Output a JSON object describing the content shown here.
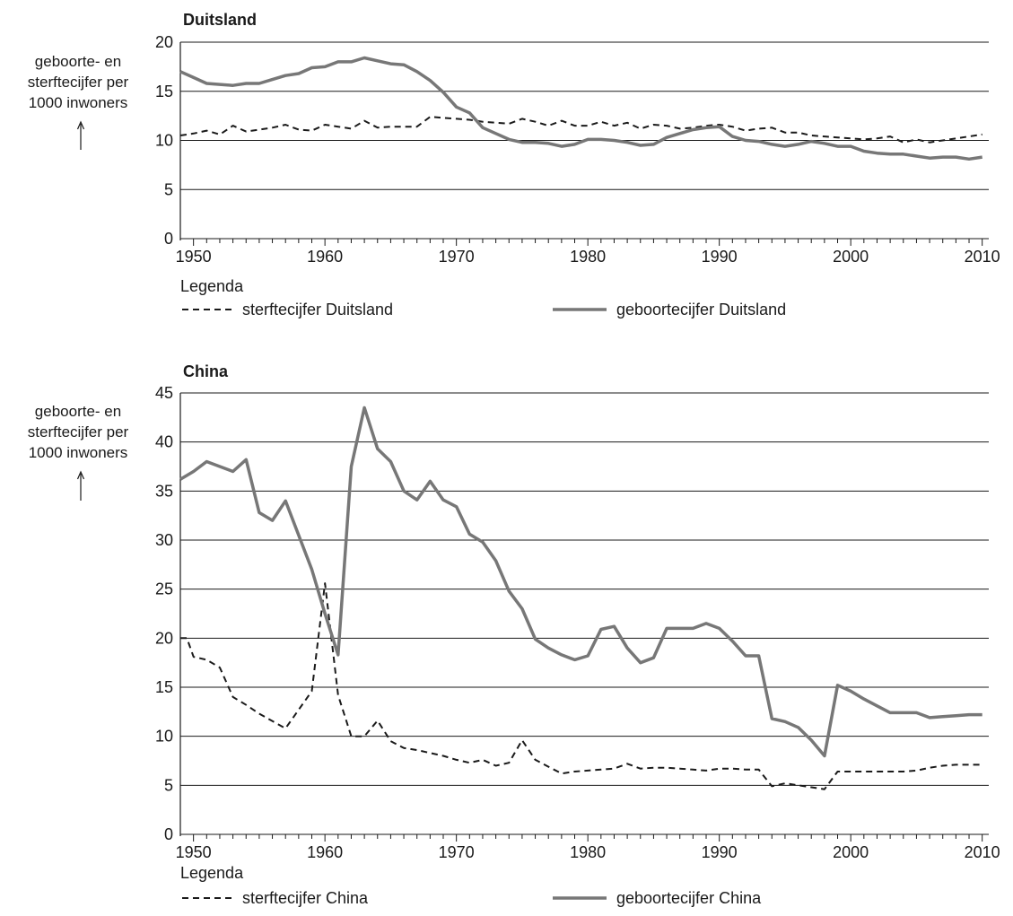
{
  "charts": [
    {
      "title": "Duitsland",
      "ylabel_lines": [
        "geboorte- en",
        "sterftecijfer per",
        "1000 inwoners"
      ],
      "legend_title": "Legenda",
      "chart_data": {
        "type": "line",
        "title": "Duitsland",
        "xlabel": "",
        "ylabel": "geboorte- en sterftecijfer per 1000 inwoners",
        "xlim": [
          1949,
          2010.5
        ],
        "ylim": [
          0,
          20
        ],
        "xticks": [
          1950,
          1960,
          1970,
          1980,
          1990,
          2000,
          2010
        ],
        "yticks": [
          0,
          5,
          10,
          15,
          20
        ],
        "grid": "horizontal",
        "legend_position": "bottom",
        "series": [
          {
            "name": "sterftecijfer Duitsland",
            "style": "dashed",
            "color": "#1a1a1a",
            "x": [
              1949,
              1950,
              1951,
              1952,
              1953,
              1954,
              1955,
              1956,
              1957,
              1958,
              1959,
              1960,
              1961,
              1962,
              1963,
              1964,
              1965,
              1966,
              1967,
              1968,
              1969,
              1970,
              1971,
              1972,
              1973,
              1974,
              1975,
              1976,
              1977,
              1978,
              1979,
              1980,
              1981,
              1982,
              1983,
              1984,
              1985,
              1986,
              1987,
              1988,
              1989,
              1990,
              1991,
              1992,
              1993,
              1994,
              1995,
              1996,
              1997,
              1998,
              1999,
              2000,
              2001,
              2002,
              2003,
              2004,
              2005,
              2006,
              2007,
              2008,
              2009,
              2010
            ],
            "y": [
              10.5,
              10.7,
              11.0,
              10.6,
              11.5,
              10.9,
              11.1,
              11.3,
              11.6,
              11.1,
              11.0,
              11.6,
              11.4,
              11.2,
              12.0,
              11.3,
              11.4,
              11.4,
              11.4,
              12.4,
              12.3,
              12.2,
              12.1,
              11.9,
              11.8,
              11.7,
              12.2,
              11.9,
              11.5,
              12.0,
              11.5,
              11.5,
              11.9,
              11.5,
              11.8,
              11.2,
              11.6,
              11.5,
              11.2,
              11.3,
              11.5,
              11.6,
              11.4,
              11.0,
              11.2,
              11.3,
              10.8,
              10.8,
              10.5,
              10.4,
              10.3,
              10.2,
              10.1,
              10.2,
              10.4,
              9.8,
              10.1,
              9.8,
              10.0,
              10.2,
              10.4,
              10.6
            ]
          },
          {
            "name": "geboortecijfer Duitsland",
            "style": "solid",
            "color": "#777777",
            "x": [
              1949,
              1950,
              1951,
              1952,
              1953,
              1954,
              1955,
              1956,
              1957,
              1958,
              1959,
              1960,
              1961,
              1962,
              1963,
              1964,
              1965,
              1966,
              1967,
              1968,
              1969,
              1970,
              1971,
              1972,
              1973,
              1974,
              1975,
              1976,
              1977,
              1978,
              1979,
              1980,
              1981,
              1982,
              1983,
              1984,
              1985,
              1986,
              1987,
              1988,
              1989,
              1990,
              1991,
              1992,
              1993,
              1994,
              1995,
              1996,
              1997,
              1998,
              1999,
              2000,
              2001,
              2002,
              2003,
              2004,
              2005,
              2006,
              2007,
              2008,
              2009,
              2010
            ],
            "y": [
              17.0,
              16.4,
              15.8,
              15.7,
              15.6,
              15.8,
              15.8,
              16.2,
              16.6,
              16.8,
              17.4,
              17.5,
              18.0,
              18.0,
              18.4,
              18.1,
              17.8,
              17.7,
              17.0,
              16.1,
              14.9,
              13.4,
              12.8,
              11.3,
              10.7,
              10.1,
              9.8,
              9.8,
              9.7,
              9.4,
              9.6,
              10.1,
              10.1,
              10.0,
              9.8,
              9.5,
              9.6,
              10.3,
              10.7,
              11.1,
              11.3,
              11.4,
              10.4,
              10.0,
              9.9,
              9.6,
              9.4,
              9.6,
              9.9,
              9.7,
              9.4,
              9.4,
              8.9,
              8.7,
              8.6,
              8.6,
              8.4,
              8.2,
              8.3,
              8.3,
              8.1,
              8.3
            ]
          }
        ]
      }
    },
    {
      "title": "China",
      "ylabel_lines": [
        "geboorte- en",
        "sterftecijfer per",
        "1000 inwoners"
      ],
      "legend_title": "Legenda",
      "chart_data": {
        "type": "line",
        "title": "China",
        "xlabel": "",
        "ylabel": "geboorte- en sterftecijfer per 1000 inwoners",
        "xlim": [
          1949,
          2010.5
        ],
        "ylim": [
          0,
          45
        ],
        "xticks": [
          1950,
          1960,
          1970,
          1980,
          1990,
          2000,
          2010
        ],
        "yticks": [
          0,
          5,
          10,
          15,
          20,
          25,
          30,
          35,
          40,
          45
        ],
        "grid": "horizontal",
        "legend_position": "bottom",
        "series": [
          {
            "name": "sterftecijfer China",
            "style": "dashed",
            "color": "#1a1a1a",
            "x": [
              1949,
              1949.5,
              1950,
              1951,
              1952,
              1953,
              1954,
              1955,
              1957,
              1959,
              1960,
              1961,
              1962,
              1963,
              1964,
              1965,
              1966,
              1967,
              1968,
              1969,
              1970,
              1971,
              1972,
              1973,
              1974,
              1975,
              1976,
              1977,
              1978,
              1979,
              1980,
              1981,
              1982,
              1983,
              1984,
              1985,
              1986,
              1987,
              1988,
              1989,
              1990,
              1991,
              1992,
              1993,
              1994,
              1995,
              1996,
              1997,
              1998,
              1999,
              2000,
              2001,
              2002,
              2003,
              2004,
              2005,
              2006,
              2007,
              2008,
              2009,
              2010
            ],
            "y": [
              20.0,
              20.0,
              18.1,
              17.8,
              17.0,
              14.0,
              13.2,
              12.3,
              10.8,
              14.6,
              25.6,
              14.2,
              10.0,
              10.0,
              11.6,
              9.5,
              8.8,
              8.6,
              8.3,
              8.0,
              7.6,
              7.3,
              7.6,
              7.0,
              7.3,
              9.6,
              7.6,
              6.9,
              6.2,
              6.4,
              6.5,
              6.6,
              6.7,
              7.2,
              6.7,
              6.8,
              6.8,
              6.7,
              6.6,
              6.5,
              6.7,
              6.7,
              6.6,
              6.6,
              4.9,
              5.2,
              5.0,
              4.8,
              4.6,
              6.4,
              6.4,
              6.4,
              6.4,
              6.4,
              6.4,
              6.5,
              6.8,
              7.0,
              7.1,
              7.1,
              7.1
            ]
          },
          {
            "name": "geboortecijfer China",
            "style": "solid",
            "color": "#777777",
            "x": [
              1949,
              1950,
              1951,
              1952,
              1953,
              1954,
              1955,
              1956,
              1957,
              1959,
              1960,
              1961,
              1962,
              1963,
              1964,
              1965,
              1966,
              1967,
              1968,
              1969,
              1970,
              1971,
              1972,
              1973,
              1974,
              1975,
              1976,
              1977,
              1978,
              1979,
              1980,
              1981,
              1982,
              1983,
              1984,
              1985,
              1986,
              1987,
              1988,
              1989,
              1990,
              1991,
              1992,
              1993,
              1994,
              1995,
              1996,
              1997,
              1998,
              1999,
              2000,
              2001,
              2002,
              2003,
              2004,
              2005,
              2006,
              2007,
              2008,
              2009,
              2010
            ],
            "y": [
              36.2,
              37.0,
              38.0,
              37.5,
              37.0,
              38.2,
              32.8,
              32.0,
              34.0,
              27.0,
              22.5,
              18.3,
              37.5,
              43.5,
              39.3,
              38.0,
              35.0,
              34.1,
              36.0,
              34.1,
              33.4,
              30.6,
              29.8,
              27.9,
              24.8,
              23.0,
              19.9,
              19.0,
              18.3,
              17.8,
              18.2,
              20.9,
              21.2,
              19.0,
              17.5,
              18.0,
              21.0,
              21.0,
              21.0,
              21.5,
              21.0,
              19.7,
              18.2,
              18.2,
              11.8,
              11.5,
              10.9,
              9.6,
              8.0,
              15.2,
              14.6,
              13.8,
              13.1,
              12.4,
              12.4,
              12.4,
              11.9,
              12.0,
              12.1,
              12.2,
              12.2
            ]
          }
        ]
      }
    }
  ]
}
